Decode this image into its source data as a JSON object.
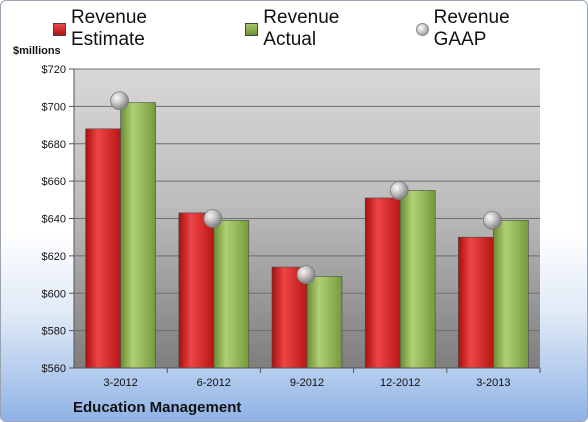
{
  "chart_data": {
    "type": "bar",
    "categories": [
      "3-2012",
      "6-2012",
      "9-2012",
      "12-2012",
      "3-2013"
    ],
    "series": [
      {
        "name": "Revenue Estimate",
        "values": [
          688,
          643,
          614,
          651,
          630
        ],
        "color": "#d11f1f",
        "style": "bar"
      },
      {
        "name": "Revenue Actual",
        "values": [
          702,
          639,
          609,
          655,
          639
        ],
        "color": "#8ab04a",
        "style": "bar"
      },
      {
        "name": "Revenue GAAP",
        "values": [
          703,
          640,
          610,
          655,
          639
        ],
        "color": "#b4b4b4",
        "style": "marker"
      }
    ],
    "ylabel": "$millions",
    "ylim": [
      560,
      720
    ],
    "yticks": [
      560,
      580,
      600,
      620,
      640,
      660,
      680,
      700,
      720
    ],
    "ytick_labels": [
      "$560",
      "$580",
      "$600",
      "$620",
      "$640",
      "$660",
      "$680",
      "$700",
      "$720"
    ],
    "grid": true,
    "legend_position": "top",
    "footer": "Education Management"
  }
}
